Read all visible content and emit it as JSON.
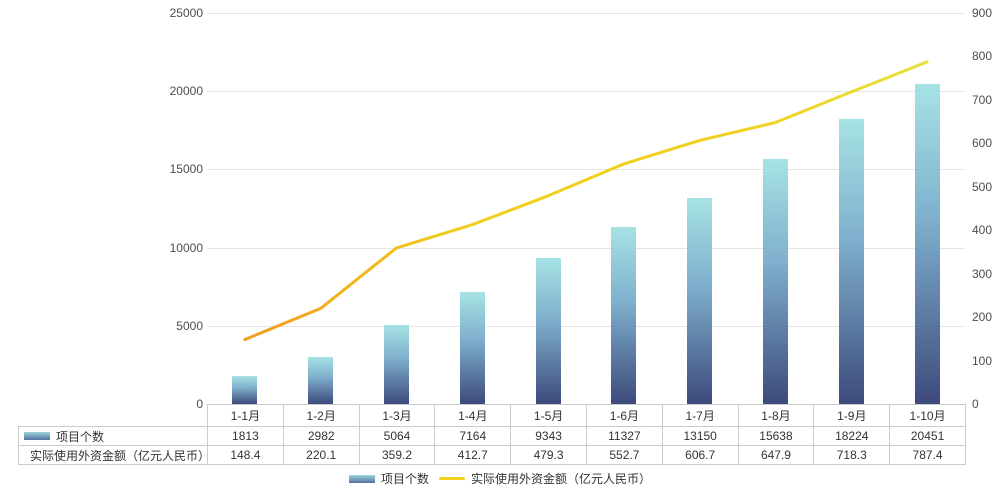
{
  "chart_data": {
    "type": "combo-bar-line",
    "categories": [
      "1-1月",
      "1-2月",
      "1-3月",
      "1-4月",
      "1-5月",
      "1-6月",
      "1-7月",
      "1-8月",
      "1-9月",
      "1-10月"
    ],
    "series": [
      {
        "name": "项目个数",
        "type": "bar",
        "axis": "left",
        "values": [
          1813,
          2982,
          5064,
          7164,
          9343,
          11327,
          13150,
          15638,
          18224,
          20451
        ]
      },
      {
        "name": "实际使用外资金额（亿元人民币）",
        "type": "line",
        "axis": "right",
        "values": [
          148.4,
          220.1,
          359.2,
          412.7,
          479.3,
          552.7,
          606.7,
          647.9,
          718.3,
          787.4
        ]
      }
    ],
    "left_axis": {
      "min": 0,
      "max": 25000,
      "step": 5000,
      "ticks": [
        "0",
        "5000",
        "10000",
        "15000",
        "20000",
        "25000"
      ]
    },
    "right_axis": {
      "min": 0,
      "max": 900,
      "step": 100,
      "ticks": [
        "0",
        "100",
        "200",
        "300",
        "400",
        "500",
        "600",
        "700",
        "800",
        "900"
      ]
    },
    "grid": true,
    "legend_position": "bottom",
    "table_shown": true
  },
  "colors": {
    "bar_top": "#a6e3e4",
    "bar_mid": "#7fb0cd",
    "bar_bottom": "#3d4a7c",
    "line_start": "#f2a01d",
    "line_mid": "#f1d01d",
    "line_end": "#e3e542",
    "gridline": "#e4e4e4",
    "table_border": "#cccccc",
    "text": "#333333"
  }
}
